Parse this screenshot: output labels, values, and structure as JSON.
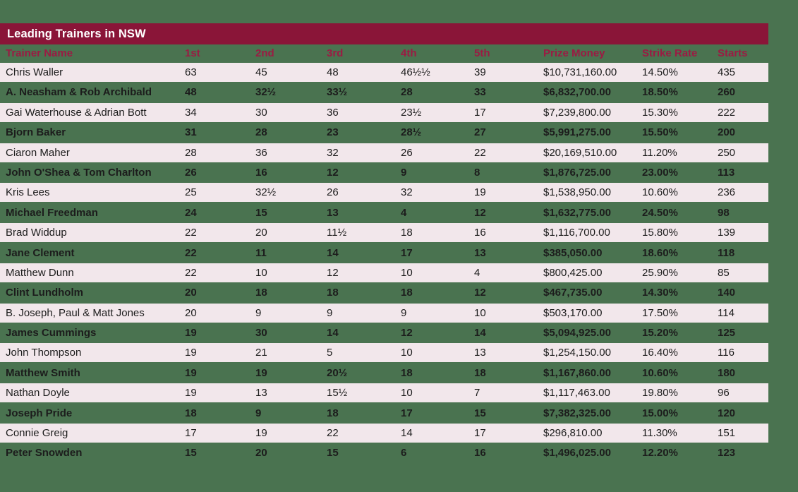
{
  "title": "Leading Trainers in NSW",
  "colors": {
    "background_green": "#4A7350",
    "title_bar_maroon": "#8A1538",
    "column_header_text": "#9B1B43",
    "row_stripe_pink": "#F2E7EB",
    "row_text": "#1C1C1C",
    "title_text": "#FFFFFF"
  },
  "chart_data": {
    "type": "table",
    "title": "Leading Trainers in NSW",
    "columns": [
      "Trainer Name",
      "1st",
      "2nd",
      "3rd",
      "4th",
      "5th",
      "Prize Money",
      "Strike Rate",
      "Starts"
    ],
    "rows": [
      [
        "Chris Waller",
        "63",
        "45",
        "48",
        "46½½",
        "39",
        "$10,731,160.00",
        "14.50%",
        "435"
      ],
      [
        "A. Neasham & Rob Archibald",
        "48",
        "32½",
        "33½",
        "28",
        "33",
        "$6,832,700.00",
        "18.50%",
        "260"
      ],
      [
        "Gai Waterhouse & Adrian Bott",
        "34",
        "30",
        "36",
        "23½",
        "17",
        "$7,239,800.00",
        "15.30%",
        "222"
      ],
      [
        "Bjorn Baker",
        "31",
        "28",
        "23",
        "28½",
        "27",
        "$5,991,275.00",
        "15.50%",
        "200"
      ],
      [
        "Ciaron Maher",
        "28",
        "36",
        "32",
        "26",
        "22",
        "$20,169,510.00",
        "11.20%",
        "250"
      ],
      [
        "John O'Shea & Tom Charlton",
        "26",
        "16",
        "12",
        "9",
        "8",
        "$1,876,725.00",
        "23.00%",
        "113"
      ],
      [
        "Kris Lees",
        "25",
        "32½",
        "26",
        "32",
        "19",
        "$1,538,950.00",
        "10.60%",
        "236"
      ],
      [
        "Michael Freedman",
        "24",
        "15",
        "13",
        "4",
        "12",
        "$1,632,775.00",
        "24.50%",
        "98"
      ],
      [
        "Brad Widdup",
        "22",
        "20",
        "11½",
        "18",
        "16",
        "$1,116,700.00",
        "15.80%",
        "139"
      ],
      [
        "Jane Clement",
        "22",
        "11",
        "14",
        "17",
        "13",
        "$385,050.00",
        "18.60%",
        "118"
      ],
      [
        "Matthew Dunn",
        "22",
        "10",
        "12",
        "10",
        "4",
        "$800,425.00",
        "25.90%",
        "85"
      ],
      [
        "Clint Lundholm",
        "20",
        "18",
        "18",
        "18",
        "12",
        "$467,735.00",
        "14.30%",
        "140"
      ],
      [
        "B. Joseph, Paul & Matt Jones",
        "20",
        "9",
        "9",
        "9",
        "10",
        "$503,170.00",
        "17.50%",
        "114"
      ],
      [
        "James Cummings",
        "19",
        "30",
        "14",
        "12",
        "14",
        "$5,094,925.00",
        "15.20%",
        "125"
      ],
      [
        "John Thompson",
        "19",
        "21",
        "5",
        "10",
        "13",
        "$1,254,150.00",
        "16.40%",
        "116"
      ],
      [
        "Matthew Smith",
        "19",
        "19",
        "20½",
        "18",
        "18",
        "$1,167,860.00",
        "10.60%",
        "180"
      ],
      [
        "Nathan Doyle",
        "19",
        "13",
        "15½",
        "10",
        "7",
        "$1,117,463.00",
        "19.80%",
        "96"
      ],
      [
        "Joseph Pride",
        "18",
        "9",
        "18",
        "17",
        "15",
        "$7,382,325.00",
        "15.00%",
        "120"
      ],
      [
        "Connie Greig",
        "17",
        "19",
        "22",
        "14",
        "17",
        "$296,810.00",
        "11.30%",
        "151"
      ],
      [
        "Peter Snowden",
        "15",
        "20",
        "15",
        "6",
        "16",
        "$1,496,025.00",
        "12.20%",
        "123"
      ]
    ]
  }
}
